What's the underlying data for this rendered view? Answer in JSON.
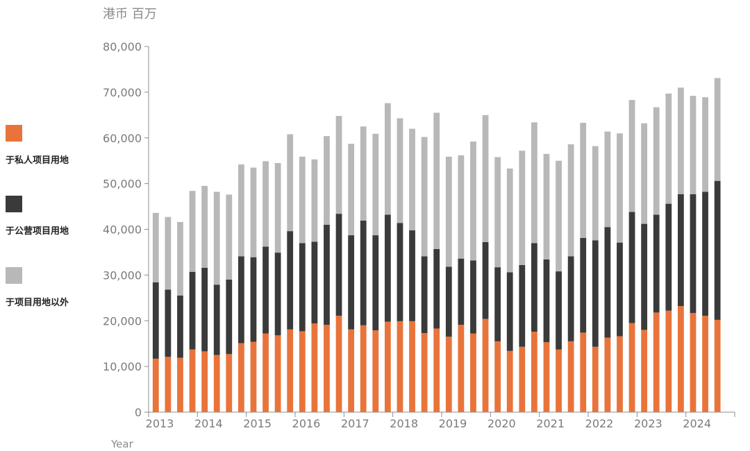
{
  "unit_label": "港币 百万",
  "legend": [
    {
      "label": "于私人项目用地",
      "color": "#e8743b"
    },
    {
      "label": "于公营项目用地",
      "color": "#3a3a3a"
    },
    {
      "label": "于项目用地以外",
      "color": "#b8b8b8"
    }
  ],
  "chart_data": {
    "type": "bar",
    "stacked": true,
    "title": "",
    "xlabel": "Year",
    "ylabel": "港币 百万",
    "ylim": [
      0,
      80000
    ],
    "yticks": [
      "0",
      "10,000",
      "20,000",
      "30,000",
      "40,000",
      "50,000",
      "60,000",
      "70,000",
      "80,000"
    ],
    "year_labels": [
      "2013",
      "2014",
      "2015",
      "2016",
      "2017",
      "2018",
      "2019",
      "2020",
      "2021",
      "2022",
      "2023",
      "2024"
    ],
    "quarters_per_year": 4,
    "grid": false,
    "legend_position": "left",
    "series": [
      {
        "name": "于私人项目用地",
        "color": "#e8743b",
        "values": [
          11700,
          12100,
          11900,
          13700,
          13300,
          12500,
          12700,
          15100,
          15400,
          17200,
          16800,
          18100,
          17700,
          19400,
          19100,
          21100,
          18100,
          19000,
          17900,
          19800,
          19900,
          19900,
          17300,
          18300,
          16500,
          19100,
          17200,
          20400,
          15500,
          13400,
          14300,
          17600,
          15300,
          13700,
          15500,
          17400,
          14300,
          16300,
          16600,
          19500,
          18000,
          21800,
          22200,
          23200,
          21700,
          21100,
          20200
        ]
      },
      {
        "name": "于公营项目用地",
        "color": "#3a3a3a",
        "values": [
          16700,
          14700,
          13600,
          17000,
          18300,
          15400,
          16300,
          19000,
          18500,
          19000,
          18100,
          21500,
          19300,
          17900,
          21900,
          22300,
          20600,
          22900,
          20800,
          23400,
          21500,
          19900,
          16800,
          17400,
          15300,
          14500,
          16000,
          16800,
          16200,
          17200,
          17900,
          19400,
          18100,
          17100,
          18600,
          20700,
          23300,
          24200,
          20500,
          24300,
          23200,
          21400,
          23400,
          24500,
          26000,
          27100,
          30400
        ]
      },
      {
        "name": "于项目用地以外",
        "color": "#b8b8b8",
        "values": [
          15200,
          15900,
          16100,
          17700,
          17900,
          20300,
          18600,
          20100,
          19600,
          18700,
          19600,
          21200,
          18900,
          18000,
          19400,
          21400,
          20000,
          20600,
          22200,
          24400,
          22900,
          22200,
          26100,
          29800,
          24100,
          22600,
          26000,
          27800,
          24100,
          22700,
          25000,
          26400,
          23100,
          24200,
          24500,
          25200,
          20600,
          20900,
          23900,
          24500,
          22000,
          23500,
          24100,
          23300,
          21500,
          20700,
          22500
        ]
      }
    ]
  }
}
